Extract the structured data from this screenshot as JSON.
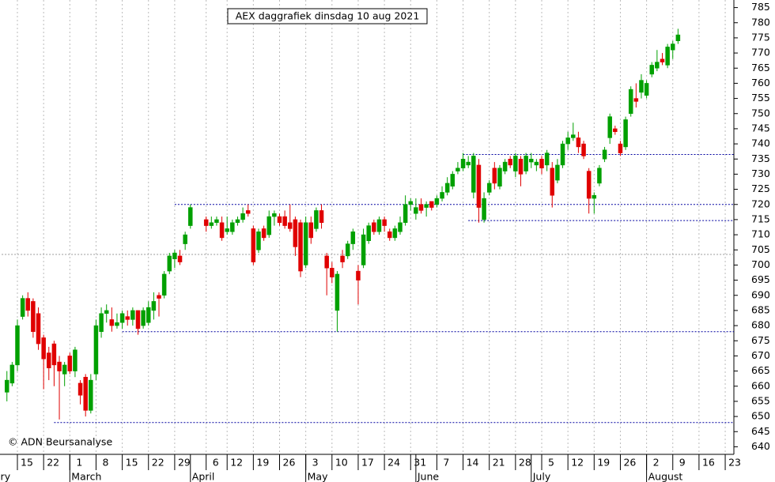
{
  "chart_data": {
    "type": "candlestick",
    "title": "AEX daggrafiek dinsdag 10 aug 2021",
    "footnote": "© ADN Beursanalyse",
    "ylim": [
      637.5,
      787.5
    ],
    "yticks": [
      640,
      645,
      650,
      655,
      660,
      665,
      670,
      675,
      680,
      685,
      690,
      695,
      700,
      705,
      710,
      715,
      720,
      725,
      730,
      735,
      740,
      745,
      750,
      755,
      760,
      765,
      770,
      775,
      780,
      785
    ],
    "xlim": [
      41,
      238
    ],
    "xticks": [
      {
        "value": 46,
        "label": "15"
      },
      {
        "value": 53,
        "label": "22"
      },
      {
        "value": 60,
        "label": "1"
      },
      {
        "value": 67,
        "label": "8"
      },
      {
        "value": 74,
        "label": "15"
      },
      {
        "value": 81,
        "label": "22"
      },
      {
        "value": 88,
        "label": "29"
      },
      {
        "value": 96,
        "label": "6"
      },
      {
        "value": 102,
        "label": "12"
      },
      {
        "value": 109,
        "label": "19"
      },
      {
        "value": 116,
        "label": "26"
      },
      {
        "value": 123,
        "label": "3"
      },
      {
        "value": 130,
        "label": "10"
      },
      {
        "value": 137,
        "label": "17"
      },
      {
        "value": 144,
        "label": "24"
      },
      {
        "value": 151,
        "label": "31"
      },
      {
        "value": 158,
        "label": "7"
      },
      {
        "value": 165,
        "label": "14"
      },
      {
        "value": 172,
        "label": "21"
      },
      {
        "value": 179,
        "label": "28"
      },
      {
        "value": 186,
        "label": "5"
      },
      {
        "value": 193,
        "label": "12"
      },
      {
        "value": 200,
        "label": "19"
      },
      {
        "value": 207,
        "label": "26"
      },
      {
        "value": 214,
        "label": "2"
      },
      {
        "value": 221,
        "label": "9"
      },
      {
        "value": 228,
        "label": "16"
      },
      {
        "value": 235,
        "label": "23"
      }
    ],
    "months": [
      {
        "value": 32,
        "label": "February"
      },
      {
        "value": 60,
        "label": "March"
      },
      {
        "value": 91,
        "label": "April"
      },
      {
        "value": 121,
        "label": "May"
      },
      {
        "value": 152,
        "label": "June"
      },
      {
        "value": 182,
        "label": "July"
      },
      {
        "value": 213,
        "label": "August"
      }
    ],
    "levels": [
      {
        "value": 736.5,
        "start": 165
      },
      {
        "value": 720,
        "start": 88
      },
      {
        "value": 714.7,
        "start": 166
      },
      {
        "value": 703.5,
        "start": 41
      },
      {
        "value": 678,
        "start": 74
      },
      {
        "value": 648,
        "start": 55
      }
    ],
    "up_color": "#00a000",
    "down_color": "#e00000",
    "level_color": "#0000a0",
    "candles": {
      "x": [
        42,
        43,
        46,
        47,
        48,
        49,
        50,
        53,
        54,
        55,
        56,
        57,
        60,
        61,
        62,
        63,
        64,
        67,
        68,
        69,
        70,
        71,
        74,
        75,
        76,
        77,
        78,
        81,
        82,
        83,
        84,
        85,
        88,
        89,
        90,
        91,
        96,
        97,
        98,
        99,
        102,
        103,
        104,
        105,
        106,
        109,
        110,
        111,
        112,
        113,
        116,
        117,
        118,
        119,
        120,
        123,
        124,
        125,
        126,
        127,
        130,
        131,
        132,
        133,
        134,
        137,
        138,
        139,
        140,
        141,
        144,
        145,
        146,
        147,
        148,
        151,
        152,
        153,
        154,
        155,
        158,
        159,
        160,
        161,
        162,
        165,
        166,
        167,
        168,
        169,
        172,
        173,
        174,
        175,
        176,
        179,
        180,
        181,
        182,
        183,
        186,
        187,
        188,
        189,
        190,
        193,
        194,
        195,
        196,
        197,
        200,
        201,
        202,
        203,
        204,
        207,
        208,
        209,
        210,
        211,
        214,
        215,
        216,
        217,
        218,
        221,
        222
      ],
      "open": [
        658,
        661,
        667,
        683,
        689,
        688,
        684,
        676,
        671,
        674,
        668,
        664,
        670,
        665,
        661,
        663,
        652,
        664,
        678,
        684,
        682,
        680,
        681,
        683,
        682,
        685,
        680,
        681,
        685,
        690,
        690,
        698,
        702,
        703,
        707,
        713,
        715,
        713,
        714,
        714,
        711,
        711,
        714,
        715,
        718,
        712,
        705,
        712,
        710,
        716,
        716,
        716,
        714,
        715,
        714,
        700,
        714,
        712,
        718,
        703,
        699,
        685,
        703,
        703,
        707,
        698,
        700,
        708,
        714,
        711,
        715,
        711,
        709,
        711,
        714,
        720,
        717,
        720,
        719,
        721,
        720,
        722,
        724,
        726,
        731,
        732,
        733,
        724,
        733,
        715,
        724,
        732,
        726,
        731,
        735,
        731,
        735,
        731,
        734,
        733,
        735,
        733,
        732,
        728,
        733,
        740,
        742,
        742,
        740,
        731,
        722,
        727,
        735,
        742,
        745,
        740,
        739,
        750,
        755,
        757,
        756,
        763,
        765,
        768,
        766,
        771,
        774
      ],
      "high": [
        665,
        668,
        682,
        690,
        691,
        689,
        686,
        677,
        673,
        675,
        670,
        668,
        671,
        673,
        662,
        664,
        664,
        682,
        686,
        687,
        686,
        684,
        685,
        685,
        686,
        685,
        686,
        688,
        691,
        691,
        698,
        704,
        705,
        705,
        711,
        720,
        716,
        716,
        716,
        716,
        716,
        715,
        716,
        719,
        720,
        713,
        712,
        713,
        718,
        718,
        717,
        718,
        720,
        716,
        715,
        716,
        716,
        719,
        720,
        704,
        701,
        698,
        705,
        708,
        712,
        700,
        712,
        714,
        715,
        716,
        716,
        712,
        713,
        716,
        723,
        722,
        722,
        722,
        721,
        721,
        723,
        726,
        729,
        731,
        734,
        737,
        736,
        737,
        735,
        724,
        728,
        734,
        733,
        735,
        736,
        737,
        736,
        737,
        737,
        735,
        736,
        738,
        734,
        735,
        741,
        744,
        747,
        744,
        741,
        732,
        724,
        733,
        739,
        750,
        746,
        741,
        749,
        759,
        760,
        763,
        761,
        767,
        771,
        770,
        773,
        774,
        778
      ],
      "low": [
        655,
        660,
        665,
        682,
        683,
        676,
        672,
        659,
        662,
        660,
        649,
        660,
        664,
        663,
        654,
        650,
        651,
        662,
        676,
        681,
        678,
        679,
        679,
        680,
        680,
        677,
        679,
        680,
        682,
        683,
        689,
        697,
        699,
        700,
        705,
        712,
        711,
        712,
        713,
        708,
        710,
        710,
        713,
        714,
        716,
        700,
        704,
        708,
        709,
        713,
        713,
        712,
        711,
        703,
        696,
        699,
        707,
        711,
        712,
        690,
        694,
        678,
        699,
        702,
        705,
        687,
        699,
        707,
        710,
        710,
        711,
        708,
        708,
        710,
        713,
        718,
        715,
        717,
        716,
        718,
        719,
        721,
        723,
        725,
        730,
        731,
        732,
        722,
        714,
        714,
        723,
        725,
        725,
        730,
        732,
        729,
        726,
        730,
        732,
        731,
        730,
        731,
        719,
        727,
        732,
        738,
        741,
        737,
        735,
        717,
        717,
        726,
        734,
        740,
        743,
        736,
        738,
        749,
        752,
        755,
        755,
        762,
        764,
        766,
        765,
        768,
        773
      ],
      "close": [
        662,
        667,
        680,
        689,
        685,
        678,
        674,
        669,
        666,
        667,
        665,
        667,
        665,
        672,
        657,
        652,
        662,
        680,
        684,
        685,
        680,
        681,
        684,
        682,
        685,
        679,
        685,
        686,
        688,
        689,
        697,
        703,
        704,
        701,
        710,
        719,
        713,
        714,
        715,
        709,
        712,
        714,
        715,
        717,
        717,
        701,
        711,
        709,
        716,
        717,
        714,
        713,
        712,
        706,
        698,
        714,
        709,
        718,
        714,
        699,
        696,
        697,
        701,
        707,
        711,
        695,
        710,
        713,
        711,
        715,
        713,
        709,
        712,
        714,
        720,
        721,
        719,
        718,
        720,
        719,
        722,
        724,
        727,
        730,
        732,
        735,
        734,
        736,
        719,
        722,
        727,
        727,
        732,
        734,
        733,
        736,
        730,
        736,
        735,
        734,
        732,
        737,
        723,
        733,
        740,
        742,
        743,
        739,
        736,
        722,
        723,
        732,
        738,
        749,
        744,
        737,
        748,
        758,
        754,
        761,
        760,
        766,
        767,
        767,
        772,
        773,
        776
      ]
    }
  }
}
